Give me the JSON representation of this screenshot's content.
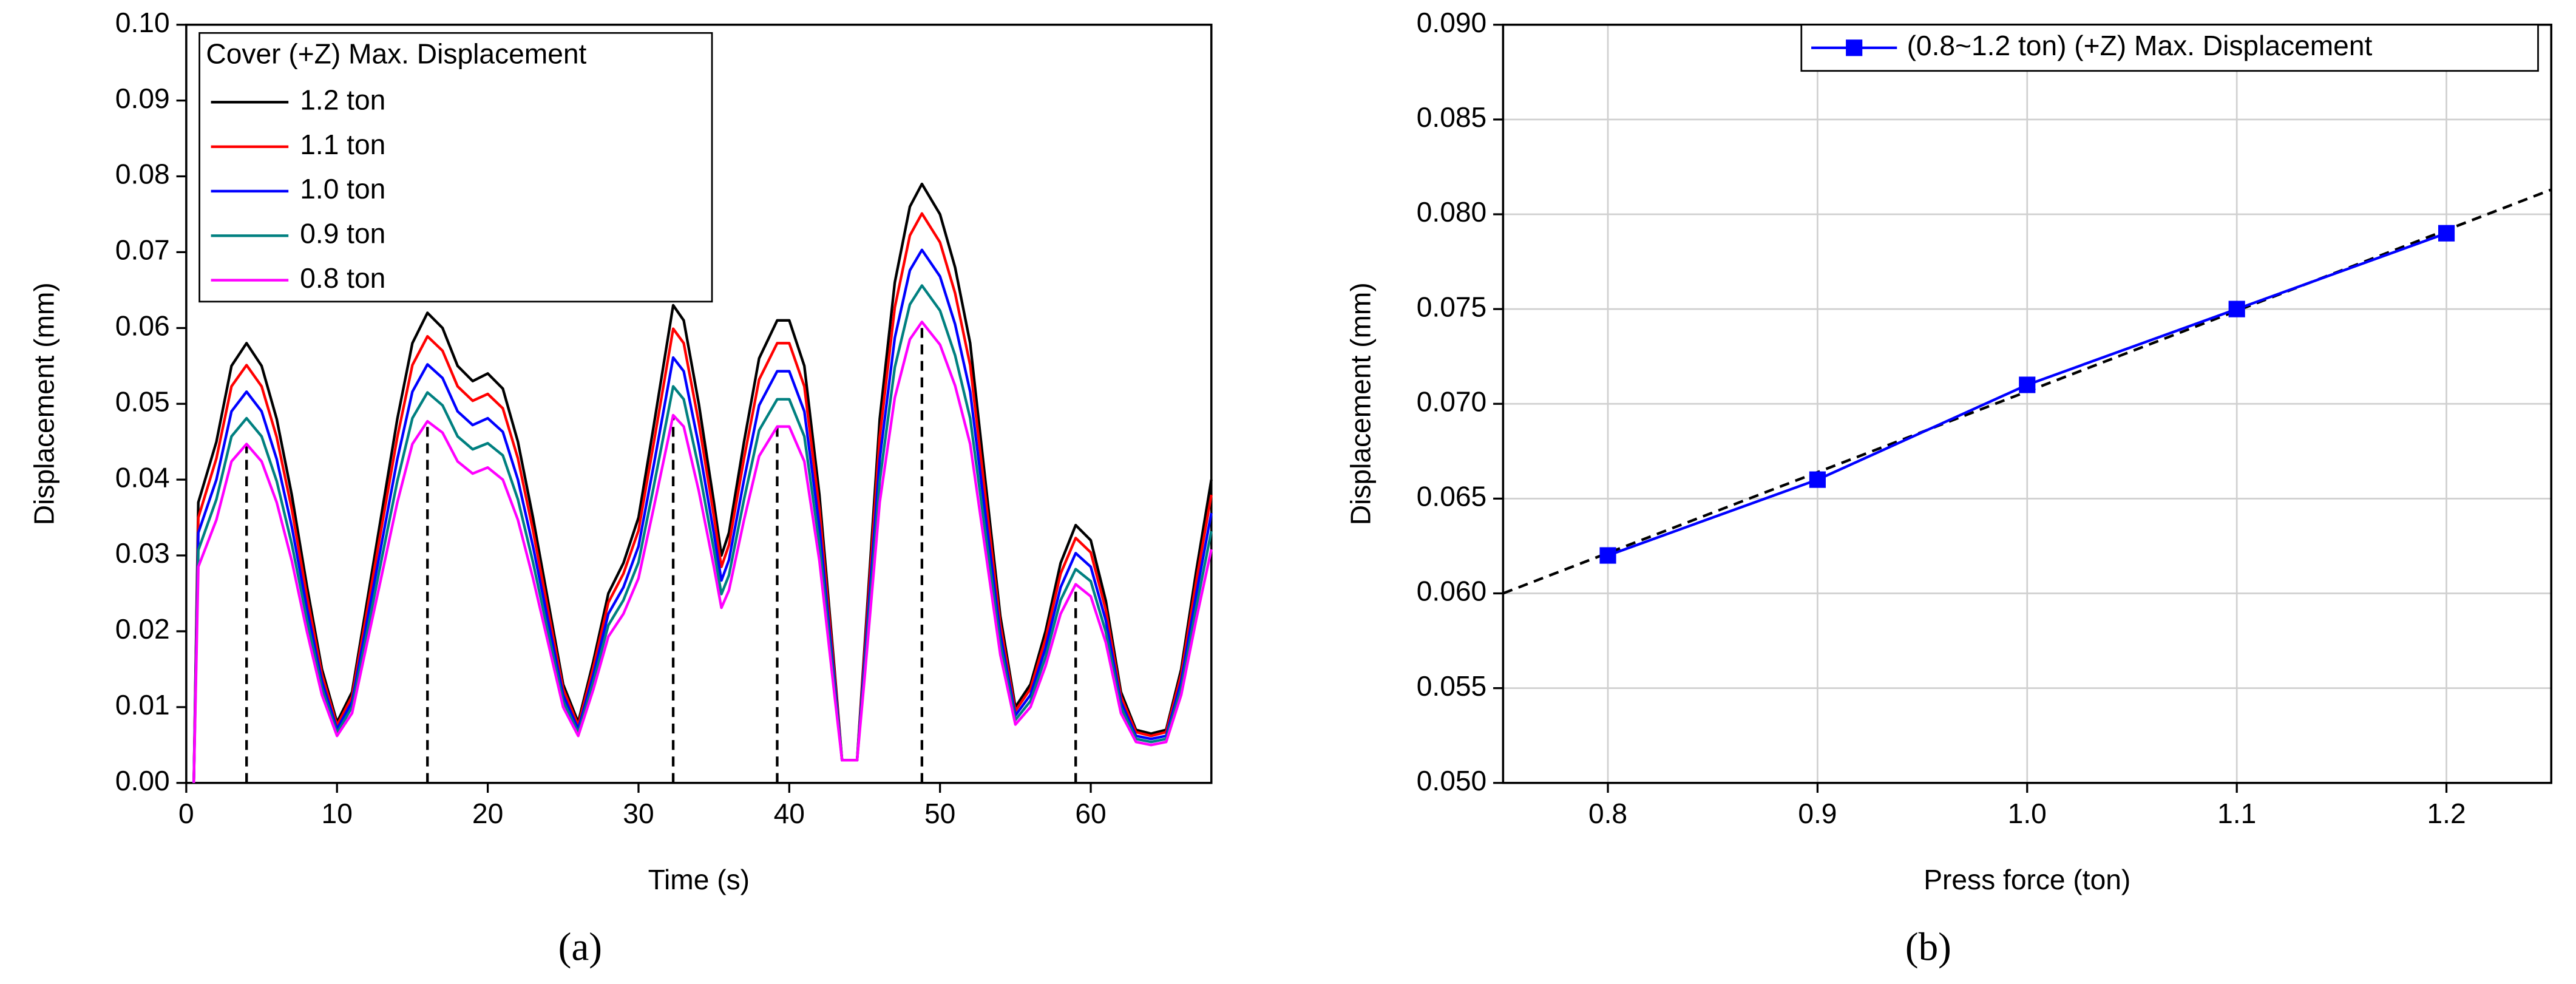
{
  "chart_data": [
    {
      "type": "line",
      "legend_title": "Cover (+Z) Max. Displacement",
      "xlabel": "Time (s)",
      "ylabel": "Displacement (mm)",
      "caption": "(a)",
      "legend": "upper left",
      "grid": false,
      "xlim": [
        0,
        68
      ],
      "xticks": [
        0,
        10,
        20,
        30,
        40,
        50,
        60
      ],
      "ylim": [
        0,
        0.1
      ],
      "yticks": [
        {
          "value": 0,
          "label": "0.00"
        },
        {
          "value": 0.01,
          "label": "0.01"
        },
        {
          "value": 0.02,
          "label": "0.02"
        },
        {
          "value": 0.03,
          "label": "0.03"
        },
        {
          "value": 0.04,
          "label": "0.04"
        },
        {
          "value": 0.05,
          "label": "0.05"
        },
        {
          "value": 0.06,
          "label": "0.06"
        },
        {
          "value": 0.07,
          "label": "0.07"
        },
        {
          "value": 0.08,
          "label": "0.08"
        },
        {
          "value": 0.09,
          "label": "0.09"
        },
        {
          "value": 0.1,
          "label": "0.10"
        }
      ],
      "x": [
        0.5,
        0.8,
        2,
        3,
        4,
        5,
        6,
        7,
        8,
        9,
        10,
        11,
        12,
        13,
        14,
        15,
        16,
        17,
        18,
        19,
        20,
        21,
        22,
        23,
        24,
        25,
        26,
        27,
        28,
        29,
        30,
        31,
        32.3,
        33,
        34,
        35,
        35.5,
        36,
        37,
        38,
        39.2,
        40,
        41,
        42,
        43,
        43.5,
        44.5,
        45,
        46,
        47,
        48,
        48.8,
        50,
        51,
        52,
        53,
        54,
        55,
        56,
        57,
        58,
        59,
        60,
        61,
        62,
        63,
        64,
        65,
        66,
        67,
        68
      ],
      "series": [
        {
          "name": "1.2 ton",
          "color": "#000000",
          "values": [
            0,
            0.037,
            0.045,
            0.055,
            0.058,
            0.055,
            0.048,
            0.038,
            0.026,
            0.015,
            0.008,
            0.012,
            0.024,
            0.036,
            0.048,
            0.058,
            0.062,
            0.06,
            0.055,
            0.053,
            0.054,
            0.052,
            0.045,
            0.035,
            0.024,
            0.013,
            0.008,
            0.016,
            0.025,
            0.029,
            0.035,
            0.047,
            0.063,
            0.061,
            0.05,
            0.037,
            0.03,
            0.033,
            0.045,
            0.056,
            0.061,
            0.061,
            0.055,
            0.038,
            0.015,
            0.003,
            0.003,
            0.018,
            0.048,
            0.066,
            0.076,
            0.079,
            0.075,
            0.068,
            0.058,
            0.04,
            0.022,
            0.01,
            0.013,
            0.02,
            0.029,
            0.034,
            0.032,
            0.024,
            0.012,
            0.007,
            0.0065,
            0.007,
            0.015,
            0.028,
            0.04
          ]
        },
        {
          "name": "1.1 ton",
          "color": "#ff0000",
          "values": [
            0,
            0.035,
            0.0428,
            0.0523,
            0.0551,
            0.0523,
            0.0456,
            0.0361,
            0.0247,
            0.0143,
            0.0076,
            0.0114,
            0.0228,
            0.0342,
            0.0456,
            0.0551,
            0.0589,
            0.057,
            0.0523,
            0.0504,
            0.0513,
            0.0494,
            0.0428,
            0.0333,
            0.0228,
            0.0124,
            0.0076,
            0.0152,
            0.0238,
            0.0276,
            0.0333,
            0.0447,
            0.0599,
            0.058,
            0.0475,
            0.0352,
            0.0285,
            0.0314,
            0.0428,
            0.0532,
            0.058,
            0.058,
            0.0523,
            0.0361,
            0.0143,
            0.003,
            0.003,
            0.0171,
            0.0456,
            0.0627,
            0.0722,
            0.0751,
            0.0713,
            0.0646,
            0.0551,
            0.038,
            0.0209,
            0.0095,
            0.0124,
            0.019,
            0.0276,
            0.0323,
            0.0304,
            0.0228,
            0.0114,
            0.0067,
            0.0062,
            0.0067,
            0.0143,
            0.0266,
            0.038
          ]
        },
        {
          "name": "1.0 ton",
          "color": "#0000ff",
          "values": [
            0,
            0.033,
            0.04,
            0.049,
            0.0516,
            0.049,
            0.0427,
            0.0338,
            0.0231,
            0.0134,
            0.0071,
            0.0107,
            0.0214,
            0.032,
            0.0427,
            0.0516,
            0.0552,
            0.0534,
            0.049,
            0.0472,
            0.0481,
            0.0463,
            0.04,
            0.0312,
            0.0214,
            0.0116,
            0.0071,
            0.0142,
            0.0223,
            0.0258,
            0.0312,
            0.0418,
            0.0561,
            0.0543,
            0.0445,
            0.0329,
            0.0267,
            0.0294,
            0.04,
            0.0498,
            0.0543,
            0.0543,
            0.049,
            0.0338,
            0.0134,
            0.003,
            0.003,
            0.016,
            0.0427,
            0.0587,
            0.0676,
            0.0703,
            0.0668,
            0.0605,
            0.0516,
            0.0356,
            0.0196,
            0.0089,
            0.0116,
            0.0178,
            0.0258,
            0.0303,
            0.0285,
            0.0214,
            0.0107,
            0.0062,
            0.0058,
            0.0062,
            0.0134,
            0.0249,
            0.0356
          ]
        },
        {
          "name": "0.9 ton",
          "color": "#008080",
          "values": [
            0,
            0.0307,
            0.0374,
            0.0457,
            0.0481,
            0.0457,
            0.0398,
            0.0315,
            0.0216,
            0.0125,
            0.0066,
            0.01,
            0.0199,
            0.0299,
            0.0398,
            0.0481,
            0.0515,
            0.0498,
            0.0457,
            0.044,
            0.0448,
            0.0432,
            0.0374,
            0.0291,
            0.0199,
            0.0108,
            0.0066,
            0.0133,
            0.0208,
            0.0241,
            0.0291,
            0.039,
            0.0523,
            0.0506,
            0.0415,
            0.0307,
            0.0249,
            0.0274,
            0.0374,
            0.0465,
            0.0506,
            0.0506,
            0.0457,
            0.0315,
            0.0125,
            0.003,
            0.003,
            0.0149,
            0.0398,
            0.0548,
            0.0631,
            0.0656,
            0.0623,
            0.0564,
            0.0481,
            0.0332,
            0.0183,
            0.0083,
            0.0108,
            0.0166,
            0.0241,
            0.0282,
            0.0266,
            0.0199,
            0.01,
            0.0058,
            0.0054,
            0.0058,
            0.0125,
            0.0232,
            0.0332
          ]
        },
        {
          "name": "0.8 ton",
          "color": "#ff00ff",
          "values": [
            0,
            0.0285,
            0.0347,
            0.0424,
            0.0447,
            0.0424,
            0.037,
            0.0293,
            0.02,
            0.0116,
            0.0062,
            0.0092,
            0.0185,
            0.0277,
            0.037,
            0.0447,
            0.0477,
            0.0462,
            0.0424,
            0.0408,
            0.0416,
            0.04,
            0.0347,
            0.027,
            0.0185,
            0.01,
            0.0062,
            0.0123,
            0.0193,
            0.0223,
            0.027,
            0.0362,
            0.0485,
            0.047,
            0.0385,
            0.0285,
            0.0231,
            0.0254,
            0.0347,
            0.0431,
            0.047,
            0.047,
            0.0424,
            0.0293,
            0.0116,
            0.003,
            0.003,
            0.0139,
            0.037,
            0.0508,
            0.0585,
            0.0608,
            0.0578,
            0.0524,
            0.0447,
            0.0308,
            0.0169,
            0.0077,
            0.01,
            0.0154,
            0.0223,
            0.0262,
            0.0246,
            0.0185,
            0.0092,
            0.0054,
            0.005,
            0.0054,
            0.0116,
            0.0216,
            0.0308
          ]
        }
      ],
      "peak_lines": {
        "x": [
          4,
          16,
          32.3,
          39.2,
          48.8,
          59
        ],
        "color": "#000000"
      }
    },
    {
      "type": "line",
      "xlabel": "Press force (ton)",
      "ylabel": "Displacement (mm)",
      "caption": "(b)",
      "legend": "upper right",
      "grid": true,
      "xlim": [
        0.75,
        1.25
      ],
      "xticks": [
        0.8,
        0.9,
        {
          "value": 1,
          "label": "1.0"
        },
        1.1,
        1.2
      ],
      "ylim": [
        0.05,
        0.09
      ],
      "yticks": [
        {
          "value": 0.05,
          "label": "0.050"
        },
        {
          "value": 0.055,
          "label": "0.055"
        },
        {
          "value": 0.06,
          "label": "0.060"
        },
        {
          "value": 0.065,
          "label": "0.065"
        },
        {
          "value": 0.07,
          "label": "0.070"
        },
        {
          "value": 0.075,
          "label": "0.075"
        },
        {
          "value": 0.08,
          "label": "0.080"
        },
        {
          "value": 0.085,
          "label": "0.085"
        },
        {
          "value": 0.09,
          "label": "0.090"
        }
      ],
      "x": [
        0.8,
        0.9,
        1,
        1.1,
        1.2
      ],
      "series": [
        {
          "name": "(0.8~1.2 ton) (+Z) Max. Displacement",
          "color": "#0000ff",
          "marker": "square",
          "values": [
            0.062,
            0.066,
            0.071,
            0.075,
            0.079
          ]
        }
      ],
      "trend_line": {
        "x": [
          0.75,
          1.25
        ],
        "values": [
          0.06,
          0.0813
        ],
        "color": "#000000"
      }
    }
  ]
}
